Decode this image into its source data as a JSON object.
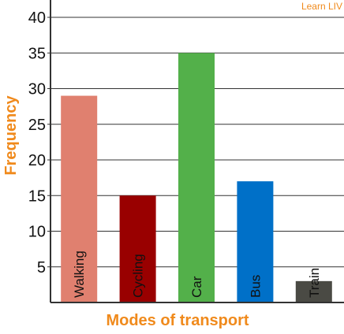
{
  "brand": "Learn LIV",
  "colors": {
    "accent": "#f08a1c",
    "grid": "#333333",
    "axis": "#333333"
  },
  "chart_data": {
    "type": "bar",
    "categories": [
      "Walking",
      "Cycling",
      "Car",
      "Bus",
      "Train"
    ],
    "values": [
      29,
      15,
      35,
      17,
      3
    ],
    "bar_colors": [
      "#e0806f",
      "#990000",
      "#53b04a",
      "#0070c8",
      "#4a4a44"
    ],
    "xlabel": "Modes of transport",
    "ylabel": "Frequency",
    "yticks": [
      5,
      10,
      15,
      20,
      25,
      30,
      35,
      40
    ],
    "ylim": [
      0,
      42
    ],
    "grid": true
  }
}
